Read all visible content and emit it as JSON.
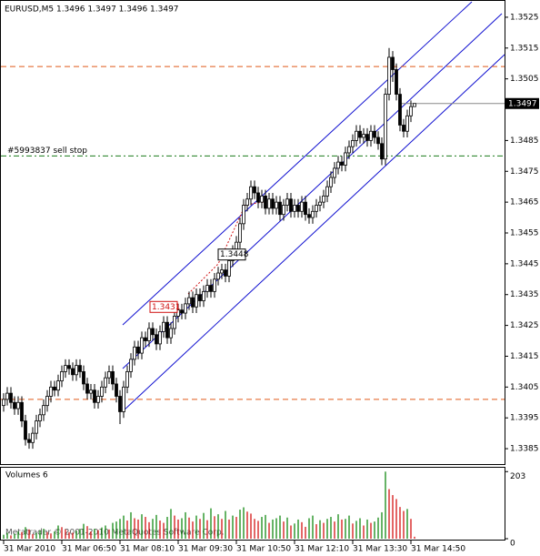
{
  "chart_data": {
    "type": "candlestick",
    "title": "EURUSD,M5  1.3496 1.3497 1.3496 1.3497",
    "categories": [
      "31 Mar 2010",
      null,
      null,
      null,
      null,
      null,
      null,
      null,
      null,
      null,
      null,
      null,
      null,
      null,
      null,
      null,
      "31 Mar 06:50",
      null,
      null,
      null,
      null,
      null,
      null,
      null,
      null,
      null,
      null,
      null,
      null,
      null,
      null,
      null,
      "31 Mar 08:10",
      null,
      null,
      null,
      null,
      null,
      null,
      null,
      null,
      null,
      null,
      null,
      null,
      null,
      null,
      null,
      "31 Mar 09:30",
      null,
      null,
      null,
      null,
      null,
      null,
      null,
      null,
      null,
      null,
      null,
      null,
      null,
      null,
      null,
      "31 Mar 10:50",
      null,
      null,
      null,
      null,
      null,
      null,
      null,
      null,
      null,
      null,
      null,
      null,
      null,
      null,
      null,
      "31 Mar 12:10",
      null,
      null,
      null,
      null,
      null,
      null,
      null,
      null,
      null,
      null,
      null,
      null,
      null,
      null,
      null,
      "31 Mar 13:30",
      null,
      null,
      null,
      null,
      null,
      null,
      null,
      null,
      null,
      null,
      null,
      null,
      null,
      null,
      null,
      "31 Mar 14:50",
      null
    ],
    "open": [
      1.3399,
      1.3401,
      1.3403,
      1.34,
      1.3398,
      1.34,
      1.3394,
      1.3388,
      1.3387,
      1.339,
      1.3394,
      1.3396,
      1.3399,
      1.3402,
      1.3405,
      1.3404,
      1.3407,
      1.341,
      1.3412,
      1.3411,
      1.3409,
      1.3412,
      1.341,
      1.3406,
      1.3403,
      1.3404,
      1.34,
      1.3402,
      1.3405,
      1.3408,
      1.341,
      1.3406,
      1.3402,
      1.3397,
      1.3405,
      1.341,
      1.3414,
      1.3418,
      1.3416,
      1.3421,
      1.342,
      1.3424,
      1.3422,
      1.3419,
      1.3423,
      1.3426,
      1.3421,
      1.3424,
      1.3428,
      1.343,
      1.3429,
      1.3432,
      1.3434,
      1.3431,
      1.3435,
      1.3433,
      1.3436,
      1.3438,
      1.3436,
      1.344,
      1.3442,
      1.3443,
      1.3441,
      1.3446,
      1.3449,
      1.3452,
      1.3458,
      1.3464,
      1.3466,
      1.347,
      1.3468,
      1.3465,
      1.3467,
      1.3463,
      1.3466,
      1.3463,
      1.3465,
      1.3461,
      1.3464,
      1.3466,
      1.3462,
      1.3464,
      1.3462,
      1.3465,
      1.3461,
      1.346,
      1.3462,
      1.3464,
      1.3465,
      1.3467,
      1.347,
      1.3473,
      1.3476,
      1.3478,
      1.3477,
      1.3481,
      1.3483,
      1.3485,
      1.3488,
      1.3486,
      1.3487,
      1.3485,
      1.3488,
      1.3486,
      1.3484,
      1.3479,
      1.35,
      1.3512,
      1.3508,
      1.35,
      1.349,
      1.3488,
      1.3493,
      1.3496
    ],
    "high": [
      1.3403,
      1.3405,
      1.3405,
      1.3402,
      1.3402,
      1.3402,
      1.3396,
      1.339,
      1.3392,
      1.3396,
      1.3398,
      1.3401,
      1.3404,
      1.3407,
      1.3407,
      1.3409,
      1.3412,
      1.3414,
      1.3414,
      1.3413,
      1.3414,
      1.3414,
      1.3412,
      1.3408,
      1.3406,
      1.3406,
      1.3404,
      1.3407,
      1.341,
      1.3412,
      1.3412,
      1.3408,
      1.3404,
      1.3407,
      1.3412,
      1.3416,
      1.342,
      1.342,
      1.3423,
      1.3423,
      1.3426,
      1.3426,
      1.3424,
      1.3425,
      1.3428,
      1.3428,
      1.3426,
      1.343,
      1.3432,
      1.3432,
      1.3434,
      1.3436,
      1.3436,
      1.3437,
      1.3437,
      1.3438,
      1.344,
      1.344,
      1.3442,
      1.3444,
      1.3445,
      1.3445,
      1.3448,
      1.3451,
      1.3454,
      1.346,
      1.3466,
      1.3468,
      1.3472,
      1.3472,
      1.347,
      1.3469,
      1.3469,
      1.3468,
      1.3468,
      1.3467,
      1.3467,
      1.3466,
      1.3468,
      1.3468,
      1.3466,
      1.3466,
      1.3467,
      1.3467,
      1.3463,
      1.3464,
      1.3466,
      1.3467,
      1.3469,
      1.3472,
      1.3475,
      1.3478,
      1.348,
      1.348,
      1.3483,
      1.3485,
      1.3487,
      1.349,
      1.349,
      1.3489,
      1.3489,
      1.349,
      1.349,
      1.3488,
      1.3486,
      1.3502,
      1.3515,
      1.3514,
      1.351,
      1.3502,
      1.3492,
      1.3495,
      1.3498,
      1.3497
    ],
    "low": [
      1.3397,
      1.3399,
      1.3398,
      1.3396,
      1.3396,
      1.3392,
      1.3386,
      1.3385,
      1.3385,
      1.3388,
      1.3392,
      1.3394,
      1.3397,
      1.34,
      1.3402,
      1.3402,
      1.3405,
      1.3408,
      1.3409,
      1.3407,
      1.3407,
      1.3408,
      1.3404,
      1.3401,
      1.3401,
      1.3398,
      1.3398,
      1.34,
      1.3403,
      1.3406,
      1.3404,
      1.34,
      1.3393,
      1.3395,
      1.3403,
      1.3408,
      1.3412,
      1.3414,
      1.3414,
      1.3418,
      1.3418,
      1.342,
      1.3417,
      1.3417,
      1.3421,
      1.3419,
      1.3419,
      1.3422,
      1.3426,
      1.3427,
      1.3427,
      1.343,
      1.3429,
      1.3429,
      1.3431,
      1.3431,
      1.3434,
      1.3434,
      1.3434,
      1.3438,
      1.344,
      1.3439,
      1.3439,
      1.3444,
      1.3447,
      1.345,
      1.3456,
      1.3462,
      1.3464,
      1.3466,
      1.3463,
      1.3463,
      1.3461,
      1.3461,
      1.3461,
      1.3461,
      1.3459,
      1.3459,
      1.3462,
      1.346,
      1.346,
      1.346,
      1.346,
      1.3459,
      1.3458,
      1.3458,
      1.346,
      1.3462,
      1.3463,
      1.3465,
      1.3468,
      1.3471,
      1.3474,
      1.3475,
      1.3475,
      1.3479,
      1.3481,
      1.3483,
      1.3484,
      1.3484,
      1.3483,
      1.3483,
      1.3484,
      1.3482,
      1.3477,
      1.3477,
      1.3498,
      1.3504,
      1.3498,
      1.3488,
      1.3486,
      1.3486,
      1.3491,
      1.3496
    ],
    "close": [
      1.3401,
      1.3403,
      1.34,
      1.3398,
      1.34,
      1.3394,
      1.3388,
      1.3387,
      1.339,
      1.3394,
      1.3396,
      1.3399,
      1.3402,
      1.3405,
      1.3404,
      1.3407,
      1.341,
      1.3412,
      1.3411,
      1.3409,
      1.3412,
      1.341,
      1.3406,
      1.3403,
      1.3404,
      1.34,
      1.3402,
      1.3405,
      1.3408,
      1.341,
      1.3406,
      1.3402,
      1.3397,
      1.3405,
      1.341,
      1.3414,
      1.3418,
      1.3416,
      1.3421,
      1.342,
      1.3424,
      1.3422,
      1.3419,
      1.3423,
      1.3426,
      1.3421,
      1.3424,
      1.3428,
      1.343,
      1.3429,
      1.3432,
      1.3434,
      1.3431,
      1.3435,
      1.3433,
      1.3436,
      1.3438,
      1.3436,
      1.344,
      1.3442,
      1.3443,
      1.3441,
      1.3446,
      1.3449,
      1.3452,
      1.3458,
      1.3464,
      1.3466,
      1.347,
      1.3468,
      1.3465,
      1.3467,
      1.3463,
      1.3466,
      1.3463,
      1.3465,
      1.3461,
      1.3464,
      1.3466,
      1.3462,
      1.3464,
      1.3462,
      1.3465,
      1.3461,
      1.346,
      1.3462,
      1.3464,
      1.3465,
      1.3467,
      1.347,
      1.3473,
      1.3476,
      1.3478,
      1.3477,
      1.3481,
      1.3483,
      1.3485,
      1.3488,
      1.3486,
      1.3487,
      1.3485,
      1.3488,
      1.3486,
      1.3484,
      1.3479,
      1.35,
      1.3512,
      1.3508,
      1.35,
      1.349,
      1.3488,
      1.3493,
      1.3496,
      1.3497
    ],
    "ylim": [
      1.338,
      1.353
    ],
    "yticks": [
      1.3525,
      1.3515,
      1.3505,
      1.3485,
      1.3475,
      1.3465,
      1.3455,
      1.3445,
      1.3435,
      1.3425,
      1.3415,
      1.3405,
      1.3395,
      1.3385
    ],
    "current_price": 1.3497,
    "levels": [
      {
        "value": 1.3509,
        "color": "#e05a1a"
      },
      {
        "value": 1.3401,
        "color": "#e05a1a"
      },
      {
        "value": 1.348,
        "color": "#1a7a1a",
        "label": "#5993837 sell stop"
      }
    ],
    "trade_labels": [
      {
        "value": 1.3431,
        "label": "1.3431",
        "color": "#d01010"
      },
      {
        "value": 1.3448,
        "label": "1.3448",
        "color": "#000000"
      }
    ],
    "volume_title": "Volumes 6",
    "volumes": [
      12,
      18,
      10,
      15,
      22,
      20,
      35,
      28,
      14,
      18,
      25,
      30,
      20,
      16,
      22,
      40,
      35,
      28,
      20,
      18,
      24,
      30,
      45,
      38,
      22,
      30,
      26,
      34,
      40,
      28,
      48,
      52,
      60,
      70,
      55,
      80,
      62,
      58,
      74,
      66,
      50,
      60,
      72,
      55,
      48,
      66,
      90,
      70,
      58,
      62,
      80,
      64,
      52,
      70,
      60,
      78,
      56,
      92,
      68,
      74,
      60,
      84,
      58,
      70,
      66,
      88,
      95,
      82,
      76,
      60,
      54,
      66,
      72,
      48,
      58,
      62,
      70,
      52,
      64,
      40,
      46,
      58,
      50,
      36,
      62,
      70,
      44,
      56,
      48,
      60,
      66,
      52,
      74,
      58,
      60,
      70,
      46,
      54,
      62,
      40,
      58,
      48,
      52,
      64,
      80,
      203,
      150,
      132,
      120,
      96,
      84,
      90,
      60,
      6
    ],
    "vlim": [
      0,
      212
    ],
    "vticks": [
      203,
      0
    ],
    "up_color": "#008000",
    "down_color": "#d00000",
    "copyright": "Metatrader © 2001-2010 MetaQuotes Software Corp."
  }
}
